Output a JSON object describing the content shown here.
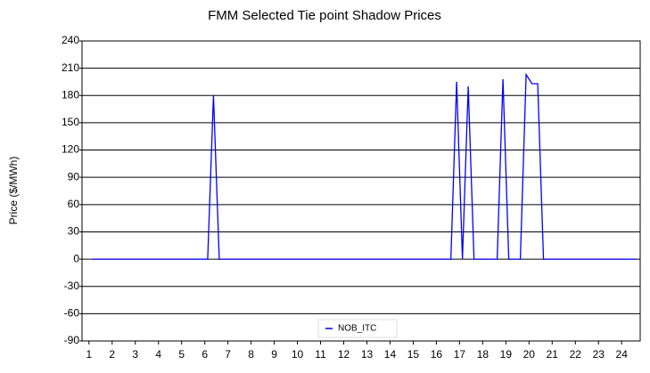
{
  "chart_data": {
    "type": "line",
    "title": "FMM Selected Tie point Shadow Prices",
    "y_label": "Price ($/MWh)",
    "x": [
      1.125,
      6.125,
      6.375,
      6.625,
      16.625,
      16.875,
      17.125,
      17.375,
      17.625,
      18.625,
      18.875,
      19.125,
      19.625,
      19.875,
      20.125,
      20.375,
      20.625,
      24.625
    ],
    "series": [
      {
        "name": "NOB_ITC",
        "color": "#0000ff",
        "values": [
          0,
          0,
          180,
          0,
          0,
          195,
          0,
          190,
          0,
          0,
          198,
          0,
          0,
          203,
          193,
          193,
          0,
          0
        ]
      }
    ],
    "xlim": [
      0.7,
      24.8
    ],
    "xticks": [
      1,
      2,
      3,
      4,
      5,
      6,
      7,
      8,
      9,
      10,
      11,
      12,
      13,
      14,
      15,
      16,
      17,
      18,
      19,
      20,
      21,
      22,
      23,
      24
    ],
    "ylim": [
      -90,
      240
    ],
    "yticks": [
      -90,
      -60,
      -30,
      0,
      30,
      60,
      90,
      120,
      150,
      180,
      210,
      240
    ],
    "grid": true,
    "legend": "bottom"
  }
}
